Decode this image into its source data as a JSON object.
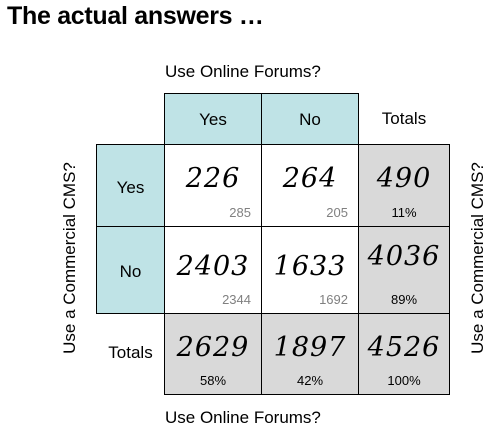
{
  "title": "The actual answers …",
  "axis": {
    "top": "Use Online Forums?",
    "bottom": "Use Online Forums?",
    "left": "Use a Commercial CMS?",
    "right": "Use a Commercial CMS?"
  },
  "columns": {
    "yes": "Yes",
    "no": "No",
    "totals": "Totals"
  },
  "rows": {
    "yes": "Yes",
    "no": "No",
    "totals": "Totals"
  },
  "cells": {
    "yes_yes": {
      "actual": "226",
      "expected": "285"
    },
    "yes_no": {
      "actual": "264",
      "expected": "205"
    },
    "yes_total": {
      "actual": "490",
      "pct": "11%"
    },
    "no_yes": {
      "actual": "2403",
      "expected": "2344"
    },
    "no_no": {
      "actual": "1633",
      "expected": "1692"
    },
    "no_total": {
      "actual": "4036",
      "pct": "89%"
    },
    "total_yes": {
      "actual": "2629",
      "pct": "58%"
    },
    "total_no": {
      "actual": "1897",
      "pct": "42%"
    },
    "total_total": {
      "actual": "4526",
      "pct": "100%"
    }
  }
}
